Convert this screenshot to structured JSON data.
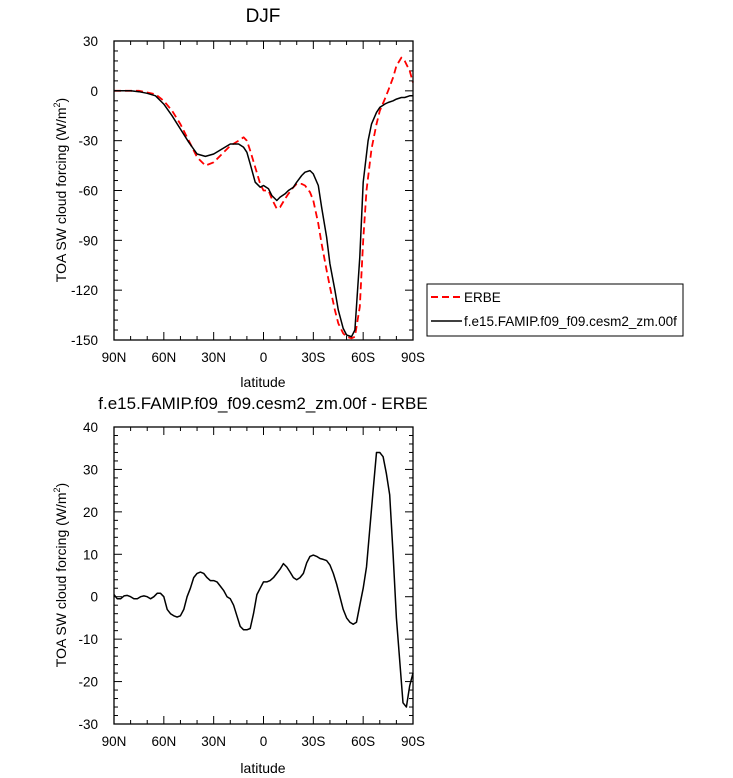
{
  "chart_data": [
    {
      "type": "line",
      "title": "DJF",
      "xlabel": "latitude",
      "ylabel": "TOA SW cloud forcing (W/m²)",
      "ylabel_main": "TOA SW cloud forcing (W/m",
      "ylabel_sup": "2",
      "ylabel_end": ")",
      "xlim": [
        -90,
        90
      ],
      "ylim": [
        -150,
        30
      ],
      "x_ticks": [
        -90,
        -60,
        -30,
        0,
        30,
        60,
        90
      ],
      "x_tick_labels": [
        "90N",
        "60N",
        "30N",
        "0",
        "30S",
        "60S",
        "90S"
      ],
      "y_ticks": [
        -150,
        -120,
        -90,
        -60,
        -30,
        0,
        30
      ],
      "y_tick_labels": [
        "-150",
        "-120",
        "-90",
        "-60",
        "-30",
        "0",
        "30"
      ],
      "legend_position": "right",
      "series": [
        {
          "name": "ERBE",
          "color": "#ff0000",
          "dash": "dashed",
          "x": [
            -90,
            -85,
            -80,
            -75,
            -70,
            -65,
            -60,
            -55,
            -50,
            -45,
            -40,
            -35,
            -30,
            -25,
            -20,
            -15,
            -12,
            -10,
            -8,
            -5,
            -2,
            0,
            3,
            5,
            8,
            10,
            13,
            15,
            18,
            20,
            23,
            25,
            28,
            30,
            33,
            35,
            38,
            40,
            43,
            45,
            48,
            50,
            53,
            55,
            58,
            60,
            62,
            65,
            68,
            70,
            73,
            75,
            78,
            80,
            83,
            85,
            88,
            90
          ],
          "y": [
            0,
            0,
            0,
            0,
            -1,
            -2,
            -6,
            -12,
            -20,
            -30,
            -40,
            -45,
            -43,
            -38,
            -33,
            -30,
            -28,
            -30,
            -36,
            -46,
            -56,
            -60,
            -60,
            -65,
            -71,
            -70,
            -65,
            -62,
            -58,
            -56,
            -56,
            -57,
            -61,
            -66,
            -80,
            -92,
            -108,
            -118,
            -132,
            -140,
            -146,
            -148,
            -149,
            -148,
            -130,
            -90,
            -60,
            -35,
            -20,
            -12,
            -5,
            0,
            8,
            15,
            20,
            18,
            12,
            5
          ]
        },
        {
          "name": "f.e15.FAMIP.f09_f09.cesm2_zm.00f",
          "color": "#000000",
          "dash": "solid",
          "x": [
            -90,
            -85,
            -80,
            -75,
            -70,
            -65,
            -60,
            -55,
            -50,
            -45,
            -40,
            -35,
            -30,
            -25,
            -20,
            -15,
            -12,
            -10,
            -8,
            -5,
            -2,
            0,
            3,
            5,
            8,
            10,
            13,
            15,
            18,
            20,
            23,
            25,
            28,
            30,
            33,
            35,
            38,
            40,
            43,
            45,
            48,
            50,
            53,
            55,
            58,
            60,
            63,
            65,
            68,
            70,
            73,
            75,
            78,
            80,
            83,
            85,
            88,
            90
          ],
          "y": [
            0,
            0,
            0,
            -0.5,
            -1.5,
            -3,
            -8,
            -15,
            -23,
            -31,
            -38,
            -39.5,
            -38,
            -35,
            -32,
            -32,
            -34,
            -37,
            -44,
            -55,
            -58,
            -57,
            -59,
            -63,
            -66,
            -64,
            -62,
            -60,
            -58,
            -55,
            -51,
            -49,
            -48,
            -50,
            -57,
            -70,
            -88,
            -104,
            -120,
            -132,
            -143,
            -147,
            -148,
            -144,
            -100,
            -55,
            -30,
            -20,
            -13,
            -10,
            -8,
            -7,
            -6,
            -5,
            -4,
            -4,
            -3,
            -3
          ]
        }
      ]
    },
    {
      "type": "line",
      "title": "f.e15.FAMIP.f09_f09.cesm2_zm.00f - ERBE",
      "xlabel": "latitude",
      "ylabel": "TOA SW cloud forcing (W/m²)",
      "ylabel_main": "TOA SW cloud forcing (W/m",
      "ylabel_sup": "2",
      "ylabel_end": ")",
      "xlim": [
        -90,
        90
      ],
      "ylim": [
        -30,
        40
      ],
      "x_ticks": [
        -90,
        -60,
        -30,
        0,
        30,
        60,
        90
      ],
      "x_tick_labels": [
        "90N",
        "60N",
        "30N",
        "0",
        "30S",
        "60S",
        "90S"
      ],
      "y_ticks": [
        -30,
        -20,
        -10,
        0,
        10,
        20,
        30,
        40
      ],
      "y_tick_labels": [
        "-30",
        "-20",
        "-10",
        "0",
        "10",
        "20",
        "30",
        "40"
      ],
      "series": [
        {
          "color": "#000000",
          "dash": "solid",
          "x": [
            -90,
            -88,
            -86,
            -84,
            -82,
            -80,
            -78,
            -76,
            -74,
            -72,
            -70,
            -68,
            -66,
            -64,
            -62,
            -60,
            -58,
            -56,
            -54,
            -52,
            -50,
            -48,
            -46,
            -44,
            -42,
            -40,
            -38,
            -36,
            -34,
            -32,
            -30,
            -28,
            -26,
            -24,
            -22,
            -20,
            -18,
            -16,
            -14,
            -12,
            -10,
            -8,
            -6,
            -4,
            -2,
            0,
            2,
            4,
            6,
            8,
            10,
            12,
            14,
            16,
            18,
            20,
            22,
            24,
            26,
            28,
            30,
            32,
            34,
            36,
            38,
            40,
            42,
            44,
            46,
            48,
            50,
            52,
            54,
            56,
            58,
            60,
            62,
            64,
            66,
            68,
            70,
            72,
            74,
            76,
            78,
            80,
            82,
            84,
            86,
            88,
            90
          ],
          "y": [
            0.5,
            -0.5,
            -0.5,
            0.2,
            0.3,
            0,
            -0.5,
            -0.5,
            0,
            0.2,
            0,
            -0.5,
            0,
            0.8,
            0.8,
            0,
            -3,
            -4,
            -4.5,
            -4.8,
            -4.5,
            -3,
            0,
            2,
            4.5,
            5.5,
            5.8,
            5.5,
            4.5,
            3.8,
            3.8,
            3.5,
            2.5,
            1.5,
            0,
            -0.5,
            -2,
            -4.5,
            -7,
            -7.8,
            -7.8,
            -7.5,
            -4,
            0.5,
            2,
            3.5,
            3.5,
            3.8,
            4.5,
            5.5,
            6.5,
            7.8,
            7,
            5.8,
            4.5,
            4,
            4.5,
            5.5,
            8,
            9.5,
            9.8,
            9.5,
            9,
            8.8,
            8.5,
            7.5,
            5.5,
            3,
            0,
            -3,
            -5,
            -6,
            -6.5,
            -6,
            -2,
            2,
            7,
            16,
            25,
            34,
            34,
            33,
            29,
            24,
            10,
            -5,
            -15,
            -25,
            -26,
            -21,
            -18
          ]
        }
      ]
    }
  ]
}
